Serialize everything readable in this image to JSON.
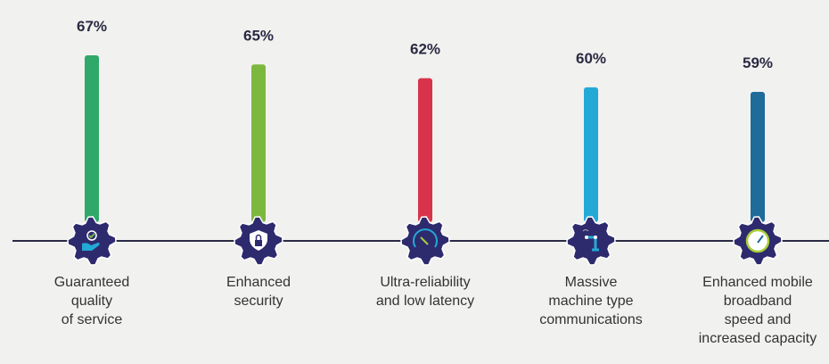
{
  "chart_data": {
    "type": "bar",
    "categories": [
      "Guaranteed quality of service",
      "Enhanced security",
      "Ultra-reliability and low latency",
      "Massive machine type communications",
      "Enhanced mobile broadband speed and increased capacity"
    ],
    "label_lines": [
      [
        "Guaranteed",
        "quality",
        "of service"
      ],
      [
        "Enhanced",
        "security"
      ],
      [
        "Ultra-reliability",
        "and low latency"
      ],
      [
        "Massive",
        "machine type",
        "communications"
      ],
      [
        "Enhanced mobile",
        "broadband",
        "speed and",
        "increased capacity"
      ]
    ],
    "values": [
      67,
      65,
      62,
      60,
      59
    ],
    "value_labels": [
      "67%",
      "65%",
      "62%",
      "60%",
      "59%"
    ],
    "colors": [
      "#2fa86a",
      "#7cb83e",
      "#d8334a",
      "#23a9d6",
      "#1f6b99"
    ],
    "icons": [
      "quality-award-hand-icon",
      "shield-lock-icon",
      "speedometer-icon",
      "robot-arm-icon",
      "gauge-icon"
    ],
    "gear_color": "#2e2a6e",
    "grid": false,
    "legend": "none"
  }
}
